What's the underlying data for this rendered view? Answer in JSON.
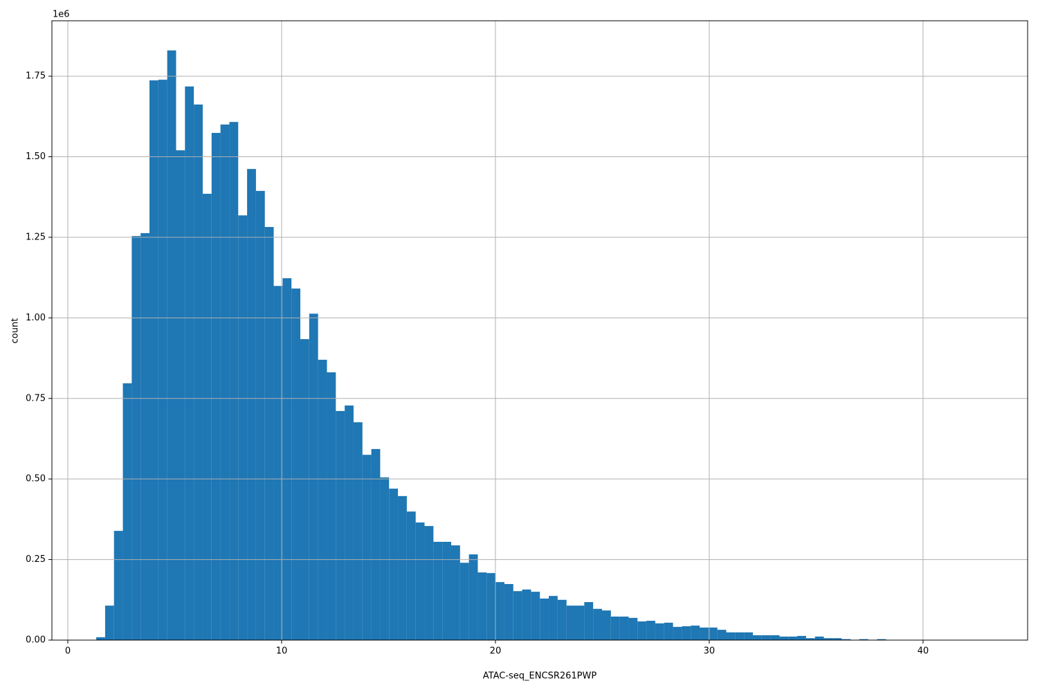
{
  "chart_data": {
    "type": "histogram",
    "x_label": "ATAC-seq_ENCSR261PWP",
    "y_label": "count",
    "y_offset_label": "1e6",
    "color": "#1f77b4",
    "grid": true,
    "bins": [
      1.33,
      1.745,
      2.16,
      2.575,
      2.99,
      3.405,
      3.82,
      4.235,
      4.65,
      5.065,
      5.48,
      5.895,
      6.31,
      6.725,
      7.14,
      7.555,
      7.97,
      8.385,
      8.8,
      9.215,
      9.63,
      10.045,
      10.46,
      10.875,
      11.29,
      11.705,
      12.12,
      12.535,
      12.95,
      13.365,
      13.78,
      14.195,
      14.61,
      15.025,
      15.44,
      15.855,
      16.27,
      16.685,
      17.1,
      17.515,
      17.93,
      18.345,
      18.76,
      19.175,
      19.59,
      20.005,
      20.42,
      20.835,
      21.25,
      21.665,
      22.08,
      22.495,
      22.91,
      23.325,
      23.74,
      24.155,
      24.57,
      24.985,
      25.4,
      25.815,
      26.23,
      26.645,
      27.06,
      27.475,
      27.89,
      28.305,
      28.72,
      29.135,
      29.55,
      29.965,
      30.38,
      30.795,
      31.21,
      31.625,
      32.04,
      32.455,
      32.87,
      33.285,
      33.7,
      34.115,
      34.53,
      34.945,
      35.36,
      35.775,
      36.19,
      36.605,
      37.02,
      37.435,
      37.85,
      38.265,
      38.68,
      39.095,
      39.51,
      39.925,
      40.34,
      40.755,
      41.17,
      41.585,
      42.0,
      42.415,
      42.83
    ],
    "counts": [
      0.009,
      0.107,
      0.339,
      0.797,
      1.254,
      1.263,
      1.737,
      1.739,
      1.83,
      1.52,
      1.718,
      1.662,
      1.385,
      1.574,
      1.6,
      1.608,
      1.318,
      1.462,
      1.394,
      1.282,
      1.099,
      1.123,
      1.091,
      0.934,
      1.013,
      0.87,
      0.831,
      0.711,
      0.728,
      0.676,
      0.575,
      0.593,
      0.505,
      0.47,
      0.447,
      0.399,
      0.365,
      0.354,
      0.305,
      0.305,
      0.294,
      0.24,
      0.266,
      0.21,
      0.208,
      0.18,
      0.174,
      0.152,
      0.157,
      0.15,
      0.129,
      0.137,
      0.125,
      0.107,
      0.107,
      0.118,
      0.097,
      0.092,
      0.073,
      0.073,
      0.069,
      0.058,
      0.06,
      0.052,
      0.054,
      0.041,
      0.043,
      0.045,
      0.039,
      0.039,
      0.032,
      0.024,
      0.024,
      0.024,
      0.015,
      0.015,
      0.015,
      0.011,
      0.011,
      0.013,
      0.006,
      0.011,
      0.006,
      0.006,
      0.003,
      0.001,
      0.003,
      0.001,
      0.003,
      0.0005,
      0.0003,
      0.0002,
      0.0002,
      0.0001,
      0.0001,
      0.0001,
      0,
      0,
      0,
      0.0001
    ],
    "xlim": [
      -0.744,
      44.89
    ],
    "ylim": [
      0,
      1.922
    ],
    "xticks": [
      0,
      10,
      20,
      30,
      40
    ],
    "yticks": [
      {
        "value": 0,
        "label": "0.00"
      },
      {
        "value": 0.25,
        "label": "0.25"
      },
      {
        "value": 0.5,
        "label": "0.50"
      },
      {
        "value": 0.75,
        "label": "0.75"
      },
      {
        "value": 1.0,
        "label": "1.00"
      },
      {
        "value": 1.25,
        "label": "1.25"
      },
      {
        "value": 1.5,
        "label": "1.50"
      },
      {
        "value": 1.75,
        "label": "1.75"
      }
    ]
  }
}
